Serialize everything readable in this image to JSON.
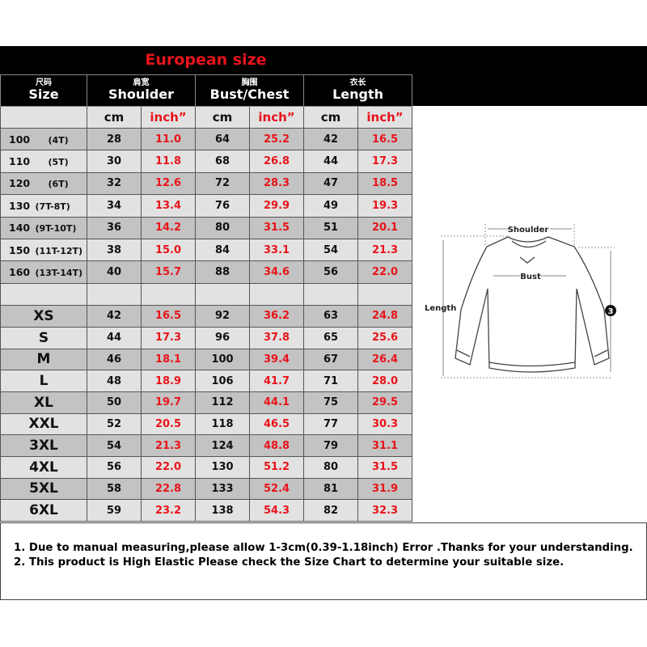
{
  "title": "European size",
  "headers": [
    {
      "cn": "尺码",
      "en": "Size"
    },
    {
      "cn": "肩宽",
      "en": "Shoulder"
    },
    {
      "cn": "胸围",
      "en": "Bust/Chest"
    },
    {
      "cn": "衣长",
      "en": "Length"
    }
  ],
  "units": {
    "cm": "cm",
    "inch": "inch”"
  },
  "kids_rows": [
    {
      "size": "100",
      "age": "(4T)",
      "v": [
        "28",
        "11.0",
        "64",
        "25.2",
        "42",
        "16.5"
      ]
    },
    {
      "size": "110",
      "age": "(5T)",
      "v": [
        "30",
        "11.8",
        "68",
        "26.8",
        "44",
        "17.3"
      ]
    },
    {
      "size": "120",
      "age": "(6T)",
      "v": [
        "32",
        "12.6",
        "72",
        "28.3",
        "47",
        "18.5"
      ]
    },
    {
      "size": "130",
      "age": "(7T-8T)",
      "v": [
        "34",
        "13.4",
        "76",
        "29.9",
        "49",
        "19.3"
      ]
    },
    {
      "size": "140",
      "age": "(9T-10T)",
      "v": [
        "36",
        "14.2",
        "80",
        "31.5",
        "51",
        "20.1"
      ]
    },
    {
      "size": "150",
      "age": "(11T-12T)",
      "v": [
        "38",
        "15.0",
        "84",
        "33.1",
        "54",
        "21.3"
      ]
    },
    {
      "size": "160",
      "age": "(13T-14T)",
      "v": [
        "40",
        "15.7",
        "88",
        "34.6",
        "56",
        "22.0"
      ]
    }
  ],
  "adult_rows": [
    {
      "size": "XS",
      "v": [
        "42",
        "16.5",
        "92",
        "36.2",
        "63",
        "24.8"
      ]
    },
    {
      "size": "S",
      "v": [
        "44",
        "17.3",
        "96",
        "37.8",
        "65",
        "25.6"
      ]
    },
    {
      "size": "M",
      "v": [
        "46",
        "18.1",
        "100",
        "39.4",
        "67",
        "26.4"
      ]
    },
    {
      "size": "L",
      "v": [
        "48",
        "18.9",
        "106",
        "41.7",
        "71",
        "28.0"
      ]
    },
    {
      "size": "XL",
      "v": [
        "50",
        "19.7",
        "112",
        "44.1",
        "75",
        "29.5"
      ]
    },
    {
      "size": "XXL",
      "v": [
        "52",
        "20.5",
        "118",
        "46.5",
        "77",
        "30.3"
      ]
    },
    {
      "size": "3XL",
      "v": [
        "54",
        "21.3",
        "124",
        "48.8",
        "79",
        "31.1"
      ]
    },
    {
      "size": "4XL",
      "v": [
        "56",
        "22.0",
        "130",
        "51.2",
        "80",
        "31.5"
      ]
    },
    {
      "size": "5XL",
      "v": [
        "58",
        "22.8",
        "133",
        "52.4",
        "81",
        "31.9"
      ]
    },
    {
      "size": "6XL",
      "v": [
        "59",
        "23.2",
        "138",
        "54.3",
        "82",
        "32.3"
      ]
    }
  ],
  "diagram": {
    "shoulder": "Shoulder",
    "bust": "Bust",
    "length": "Length",
    "sleeve_marker": "3"
  },
  "notes": [
    "1. Due to manual measuring,please allow 1-3cm(0.39-1.18inch) Error .Thanks for your understanding.",
    "2. This product is High Elastic Please check the Size Chart to determine your suitable size."
  ],
  "colors": {
    "red": "#e8141a",
    "dark_row": "#c3c3c3",
    "light_row": "#e2e2e2"
  }
}
